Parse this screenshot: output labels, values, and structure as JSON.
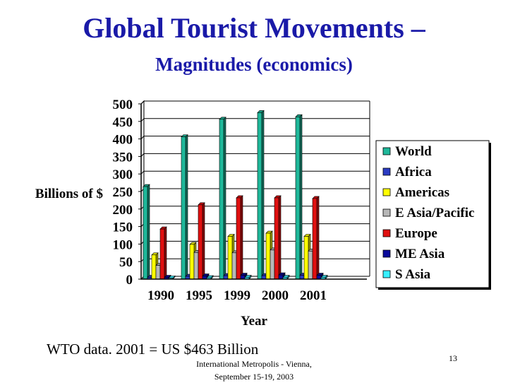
{
  "slide": {
    "title": "Global Tourist Movements –",
    "subtitle": "Magnitudes (economics)",
    "footer_note": "WTO data.  2001 = US $463 Billion",
    "footer_conference_line1": "International Metropolis - Vienna,",
    "footer_conference_line2": "September 15-19, 2003",
    "page_number": "13"
  },
  "chart_data": {
    "type": "bar",
    "xlabel": "Year",
    "ylabel": "Billions of $",
    "ylim": [
      0,
      500
    ],
    "yticks": [
      0,
      50,
      100,
      150,
      200,
      250,
      300,
      350,
      400,
      450,
      500
    ],
    "grid": true,
    "legend_position": "right",
    "categories": [
      "1990",
      "1995",
      "1999",
      "2000",
      "2001"
    ],
    "series": [
      {
        "name": "World",
        "color": "#1fb89a",
        "values": [
          264,
          406,
          456,
          475,
          463
        ]
      },
      {
        "name": "Africa",
        "color": "#2b3cc4",
        "values": [
          5,
          8,
          10,
          10,
          11
        ]
      },
      {
        "name": "Americas",
        "color": "#ffff00",
        "values": [
          69,
          99,
          122,
          131,
          122
        ]
      },
      {
        "name": "E Asia/Pacific",
        "color": "#b8b8b8",
        "values": [
          39,
          76,
          75,
          83,
          80
        ]
      },
      {
        "name": "Europe",
        "color": "#e01010",
        "values": [
          143,
          212,
          232,
          232,
          230
        ]
      },
      {
        "name": "ME Asia",
        "color": "#0a0a9c",
        "values": [
          5,
          9,
          11,
          12,
          11
        ]
      },
      {
        "name": "S Asia",
        "color": "#38f0ff",
        "values": [
          3,
          4,
          5,
          5,
          5
        ]
      }
    ]
  }
}
